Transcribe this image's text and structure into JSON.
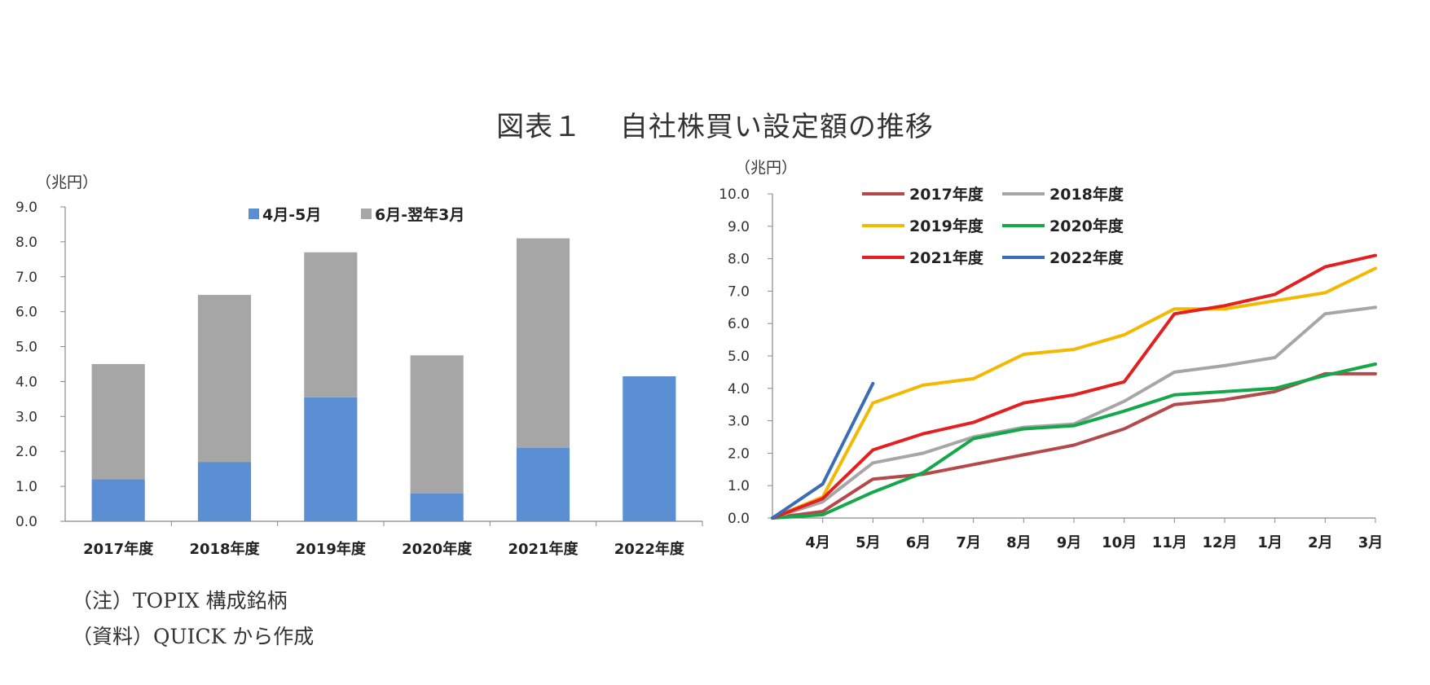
{
  "figure_title": "図表１　 自社株買い設定額の推移",
  "notes": {
    "note": "（注）TOPIX 構成銘柄",
    "source": "（資料）QUICK から作成"
  },
  "chart_data": [
    {
      "type": "bar",
      "stacked": true,
      "unit_label": "（兆円）",
      "categories": [
        "2017年度",
        "2018年度",
        "2019年度",
        "2020年度",
        "2021年度",
        "2022年度"
      ],
      "y_ticks": [
        "0.0",
        "1.0",
        "2.0",
        "3.0",
        "4.0",
        "5.0",
        "6.0",
        "7.0",
        "8.0",
        "9.0"
      ],
      "ylim": [
        0,
        9
      ],
      "legend_position": "top-center",
      "series": [
        {
          "name": "4月-5月",
          "color": "#5b8fd4",
          "values": [
            1.2,
            1.7,
            3.55,
            0.8,
            2.1,
            4.15
          ]
        },
        {
          "name": "6月-翌年3月",
          "color": "#a6a6a6",
          "values": [
            3.3,
            4.78,
            4.15,
            3.95,
            6.0,
            0
          ]
        }
      ]
    },
    {
      "type": "line",
      "unit_label": "（兆円）",
      "x_ticks": [
        "4月",
        "5月",
        "6月",
        "7月",
        "8月",
        "9月",
        "10月",
        "11月",
        "12月",
        "1月",
        "2月",
        "3月"
      ],
      "y_ticks": [
        "0.0",
        "1.0",
        "2.0",
        "3.0",
        "4.0",
        "5.0",
        "6.0",
        "7.0",
        "8.0",
        "9.0",
        "10.0"
      ],
      "ylim": [
        0,
        10
      ],
      "origin_value": 0,
      "legend_position": "top-left",
      "series": [
        {
          "name": "2017年度",
          "color": "#b5484a",
          "values": [
            0.2,
            1.2,
            1.35,
            1.65,
            1.95,
            2.25,
            2.75,
            3.5,
            3.65,
            3.9,
            4.45,
            4.45
          ]
        },
        {
          "name": "2018年度",
          "color": "#a6a6a6",
          "values": [
            0.5,
            1.7,
            2.0,
            2.5,
            2.8,
            2.9,
            3.6,
            4.5,
            4.7,
            4.95,
            6.3,
            6.5
          ]
        },
        {
          "name": "2019年度",
          "color": "#f5b800",
          "values": [
            0.65,
            3.55,
            4.1,
            4.3,
            5.05,
            5.2,
            5.65,
            6.45,
            6.45,
            6.7,
            6.95,
            7.7
          ]
        },
        {
          "name": "2020年度",
          "color": "#14a84a",
          "values": [
            0.1,
            0.8,
            1.4,
            2.45,
            2.75,
            2.85,
            3.3,
            3.8,
            3.9,
            4.0,
            4.4,
            4.75
          ]
        },
        {
          "name": "2021年度",
          "color": "#e41f1f",
          "values": [
            0.6,
            2.1,
            2.6,
            2.95,
            3.55,
            3.8,
            4.2,
            6.3,
            6.55,
            6.9,
            7.75,
            8.1
          ]
        },
        {
          "name": "2022年度",
          "color": "#3a6db5",
          "values": [
            1.05,
            4.15
          ]
        }
      ]
    }
  ]
}
